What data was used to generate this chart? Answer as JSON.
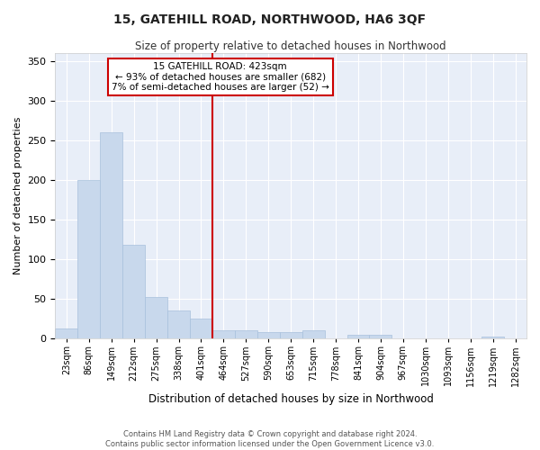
{
  "title": "15, GATEHILL ROAD, NORTHWOOD, HA6 3QF",
  "subtitle": "Size of property relative to detached houses in Northwood",
  "xlabel": "Distribution of detached houses by size in Northwood",
  "ylabel": "Number of detached properties",
  "bar_labels": [
    "23sqm",
    "86sqm",
    "149sqm",
    "212sqm",
    "275sqm",
    "338sqm",
    "401sqm",
    "464sqm",
    "527sqm",
    "590sqm",
    "653sqm",
    "715sqm",
    "778sqm",
    "841sqm",
    "904sqm",
    "967sqm",
    "1030sqm",
    "1093sqm",
    "1156sqm",
    "1219sqm",
    "1282sqm"
  ],
  "bar_heights": [
    13,
    200,
    260,
    118,
    53,
    36,
    25,
    10,
    10,
    8,
    8,
    10,
    0,
    5,
    5,
    0,
    0,
    0,
    0,
    3,
    0
  ],
  "bar_color": "#c8d8ec",
  "bar_edge_color": "#a8c0dc",
  "reference_line_index": 6,
  "reference_line_color": "#cc0000",
  "reference_line_label": "15 GATEHILL ROAD: 423sqm",
  "annotation_line1": "← 93% of detached houses are smaller (682)",
  "annotation_line2": "7% of semi-detached houses are larger (52) →",
  "annotation_box_facecolor": "#ffffff",
  "annotation_box_edgecolor": "#cc0000",
  "background_color": "#e8eef8",
  "grid_color": "#ffffff",
  "ylim": [
    0,
    360
  ],
  "yticks": [
    0,
    50,
    100,
    150,
    200,
    250,
    300,
    350
  ],
  "footer_line1": "Contains HM Land Registry data © Crown copyright and database right 2024.",
  "footer_line2": "Contains public sector information licensed under the Open Government Licence v3.0."
}
